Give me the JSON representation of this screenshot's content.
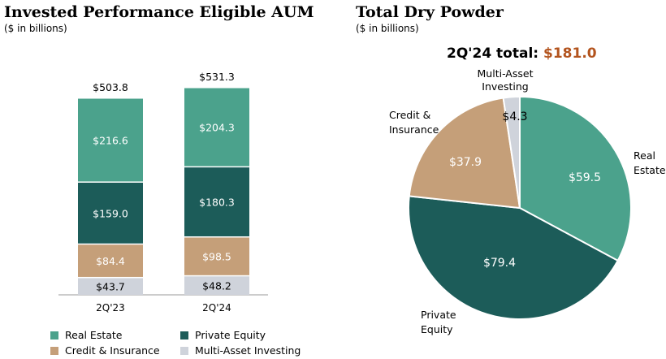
{
  "colors": {
    "real_estate": "#4ba28c",
    "private_equity": "#1c5c59",
    "credit_insurance": "#c59f79",
    "multi_asset": "#cfd3db",
    "total_accent": "#b3541e"
  },
  "left": {
    "title": "Invested Performance Eligible AUM",
    "subtitle": "($ in billions)"
  },
  "right": {
    "title": "Total Dry Powder",
    "subtitle": "($ in billions)",
    "total_label": "2Q'24 total:",
    "total_value": "$181.0"
  },
  "legend": [
    {
      "label": "Real Estate",
      "color_key": "real_estate"
    },
    {
      "label": "Private Equity",
      "color_key": "private_equity"
    },
    {
      "label": "Credit & Insurance",
      "color_key": "credit_insurance"
    },
    {
      "label": "Multi-Asset Investing",
      "color_key": "multi_asset"
    }
  ],
  "chart_data": [
    {
      "type": "bar",
      "stacked": true,
      "title": "Invested Performance Eligible AUM",
      "subtitle": "($ in billions)",
      "categories": [
        "2Q'23",
        "2Q'24"
      ],
      "totals": [
        "$503.8",
        "$531.3"
      ],
      "series": [
        {
          "name": "Multi-Asset Investing",
          "color_key": "multi_asset",
          "values": [
            43.7,
            48.2
          ],
          "labels": [
            "$43.7",
            "$48.2"
          ]
        },
        {
          "name": "Credit & Insurance",
          "color_key": "credit_insurance",
          "values": [
            84.4,
            98.5
          ],
          "labels": [
            "$84.4",
            "$98.5"
          ]
        },
        {
          "name": "Private Equity",
          "color_key": "private_equity",
          "values": [
            159.0,
            180.3
          ],
          "labels": [
            "$159.0",
            "$180.3"
          ]
        },
        {
          "name": "Real Estate",
          "color_key": "real_estate",
          "values": [
            216.6,
            204.3
          ],
          "labels": [
            "$216.6",
            "$204.3"
          ]
        }
      ]
    },
    {
      "type": "pie",
      "title": "Total Dry Powder",
      "subtitle": "($ in billions)",
      "slices": [
        {
          "name": "Real Estate",
          "display_name": [
            "Real",
            "Estate"
          ],
          "value": 59.5,
          "label": "$59.5",
          "color_key": "real_estate"
        },
        {
          "name": "Private Equity",
          "display_name": [
            "Private",
            "Equity"
          ],
          "value": 79.4,
          "label": "$79.4",
          "color_key": "private_equity"
        },
        {
          "name": "Credit & Insurance",
          "display_name": [
            "Credit &",
            "Insurance"
          ],
          "value": 37.9,
          "label": "$37.9",
          "color_key": "credit_insurance"
        },
        {
          "name": "Multi-Asset Investing",
          "display_name": [
            "Multi-Asset",
            "Investing"
          ],
          "value": 4.3,
          "label": "$4.3",
          "color_key": "multi_asset"
        }
      ]
    }
  ]
}
